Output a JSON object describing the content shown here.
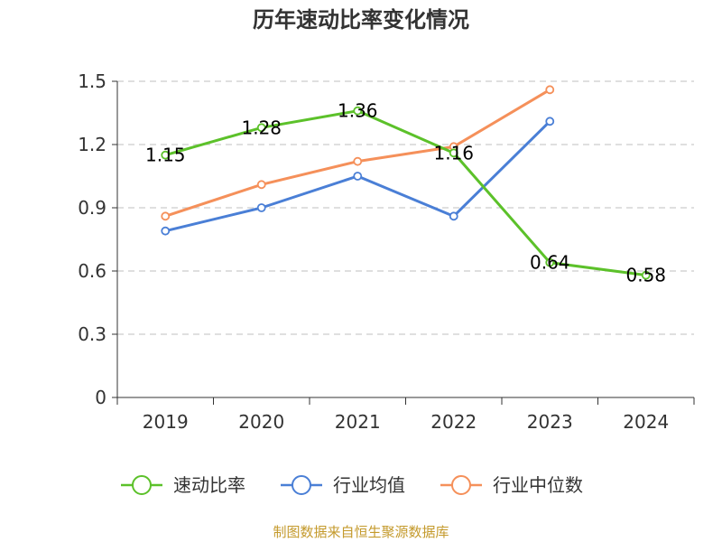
{
  "chart_data": {
    "type": "line",
    "title": "历年速动比率变化情况",
    "categories": [
      "2019",
      "2020",
      "2021",
      "2022",
      "2023",
      "2024"
    ],
    "yticks": [
      "0",
      "0.3",
      "0.6",
      "0.9",
      "1.2",
      "1.5"
    ],
    "ylim": [
      0,
      1.5
    ],
    "grid": true,
    "legend_position": "bottom",
    "series": [
      {
        "name": "速动比率",
        "color": "#5cc12a",
        "values": [
          1.15,
          1.28,
          1.36,
          1.16,
          0.64,
          0.58
        ],
        "labels": [
          "1.15",
          "1.28",
          "1.36",
          "1.16",
          "0.64",
          "0.58"
        ]
      },
      {
        "name": "行业均值",
        "color": "#4a7fd6",
        "values": [
          0.79,
          0.9,
          1.05,
          0.86,
          1.31,
          null
        ]
      },
      {
        "name": "行业中位数",
        "color": "#f5905a",
        "values": [
          0.86,
          1.01,
          1.12,
          1.19,
          1.46,
          null
        ]
      }
    ]
  },
  "source": "制图数据来自恒生聚源数据库"
}
